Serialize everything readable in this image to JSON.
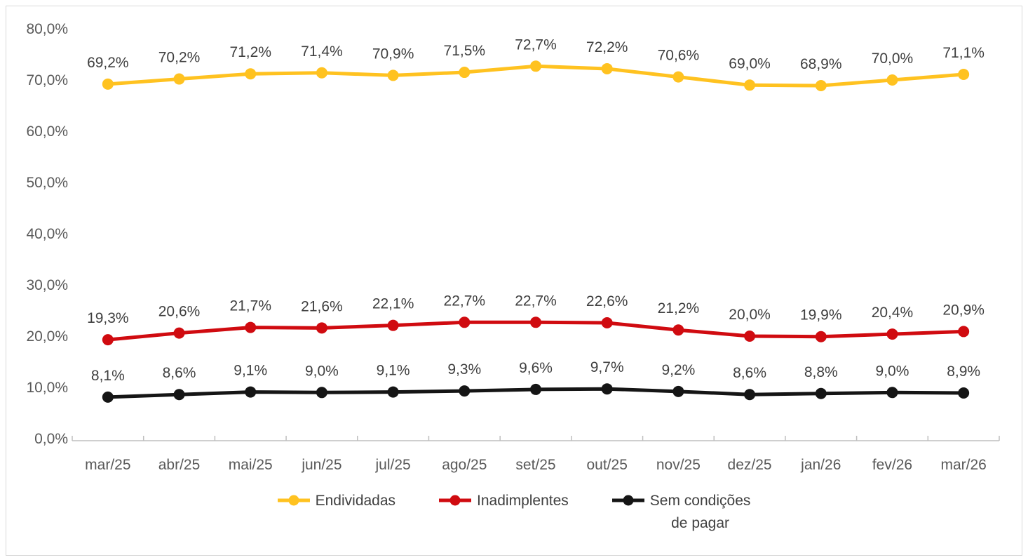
{
  "page": {
    "background": "#ffffff",
    "border_color": "#d9d9d9"
  },
  "chart_data": {
    "type": "line",
    "title": "",
    "xlabel": "",
    "ylabel": "",
    "decimal_separator": ",",
    "grid": false,
    "categories": [
      "mar/25",
      "abr/25",
      "mai/25",
      "jun/25",
      "jul/25",
      "ago/25",
      "set/25",
      "out/25",
      "nov/25",
      "dez/25",
      "jan/26",
      "fev/26",
      "mar/26"
    ],
    "series": [
      {
        "name": "Endividadas",
        "color": "#FFC220",
        "values": [
          69.2,
          70.2,
          71.2,
          71.4,
          70.9,
          71.5,
          72.7,
          72.2,
          70.6,
          69.0,
          68.9,
          70.0,
          71.1
        ],
        "labels": [
          "69,2%",
          "70,2%",
          "71,2%",
          "71,4%",
          "70,9%",
          "71,5%",
          "72,7%",
          "72,2%",
          "70,6%",
          "69,0%",
          "68,9%",
          "70,0%",
          "71,1%"
        ]
      },
      {
        "name": "Inadimplentes",
        "color": "#D00B10",
        "values": [
          19.3,
          20.6,
          21.7,
          21.6,
          22.1,
          22.7,
          22.7,
          22.6,
          21.2,
          20.0,
          19.9,
          20.4,
          20.9
        ],
        "labels": [
          "19,3%",
          "20,6%",
          "21,7%",
          "21,6%",
          "22,1%",
          "22,7%",
          "22,7%",
          "22,6%",
          "21,2%",
          "20,0%",
          "19,9%",
          "20,4%",
          "20,9%"
        ]
      },
      {
        "name": "Sem condições de pagar",
        "color": "#151515",
        "values": [
          8.1,
          8.6,
          9.1,
          9.0,
          9.1,
          9.3,
          9.6,
          9.7,
          9.2,
          8.6,
          8.8,
          9.0,
          8.9
        ],
        "labels": [
          "8,1%",
          "8,6%",
          "9,1%",
          "9,0%",
          "9,1%",
          "9,3%",
          "9,6%",
          "9,7%",
          "9,2%",
          "8,6%",
          "8,8%",
          "9,0%",
          "8,9%"
        ]
      }
    ],
    "y_axis": {
      "min": 0,
      "max": 80,
      "step": 10,
      "tick_labels": [
        "0,0%",
        "10,0%",
        "20,0%",
        "30,0%",
        "40,0%",
        "50,0%",
        "60,0%",
        "70,0%",
        "80,0%"
      ]
    },
    "legend": {
      "position": "bottom",
      "items": [
        {
          "label": "Endividadas",
          "label_lines": [
            "Endividadas"
          ]
        },
        {
          "label": "Inadimplentes",
          "label_lines": [
            "Inadimplentes"
          ]
        },
        {
          "label": "Sem condições de pagar",
          "label_lines": [
            "Sem condições",
            "de pagar"
          ]
        }
      ]
    },
    "style": {
      "axis_line_color": "#bfbfbf",
      "axis_text_color": "#595959",
      "data_label_color": "#3f3f3f",
      "line_width": 5,
      "marker_radius": 8
    }
  }
}
